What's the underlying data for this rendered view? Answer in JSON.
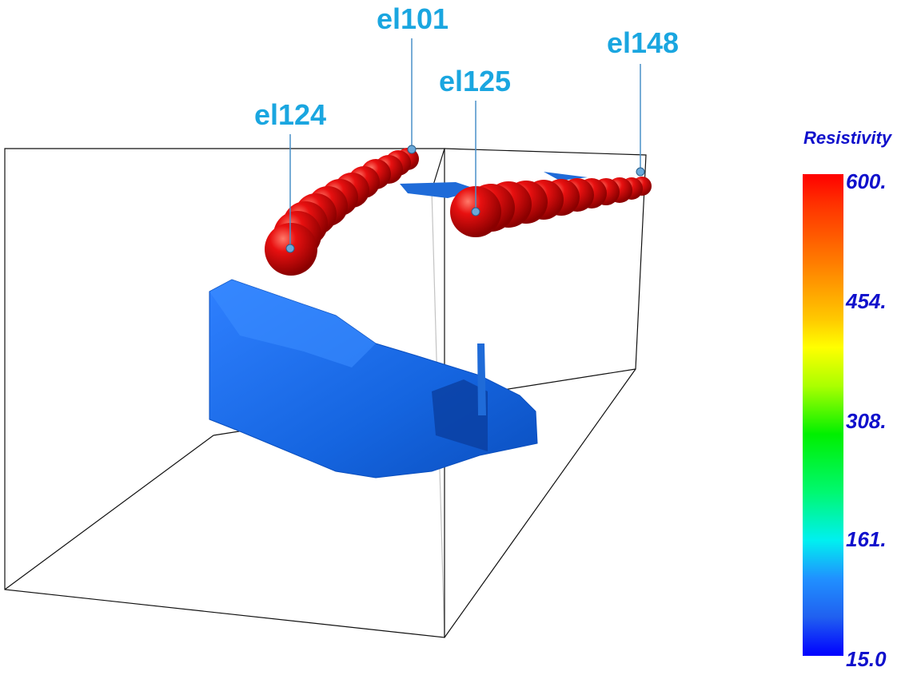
{
  "electrodes": [
    {
      "label": "el101"
    },
    {
      "label": "el125"
    },
    {
      "label": "el148"
    },
    {
      "label": "el124"
    }
  ],
  "colorbar": {
    "title": "Resistivity",
    "ticks": [
      "600.",
      "454.",
      "308.",
      "161.",
      "15.0"
    ],
    "high_color": "#ff0000",
    "low_color": "#0000ff"
  },
  "surfaces": {
    "low_resistivity_color": "#1a6fe8",
    "high_resistivity_color": "#e00000"
  }
}
